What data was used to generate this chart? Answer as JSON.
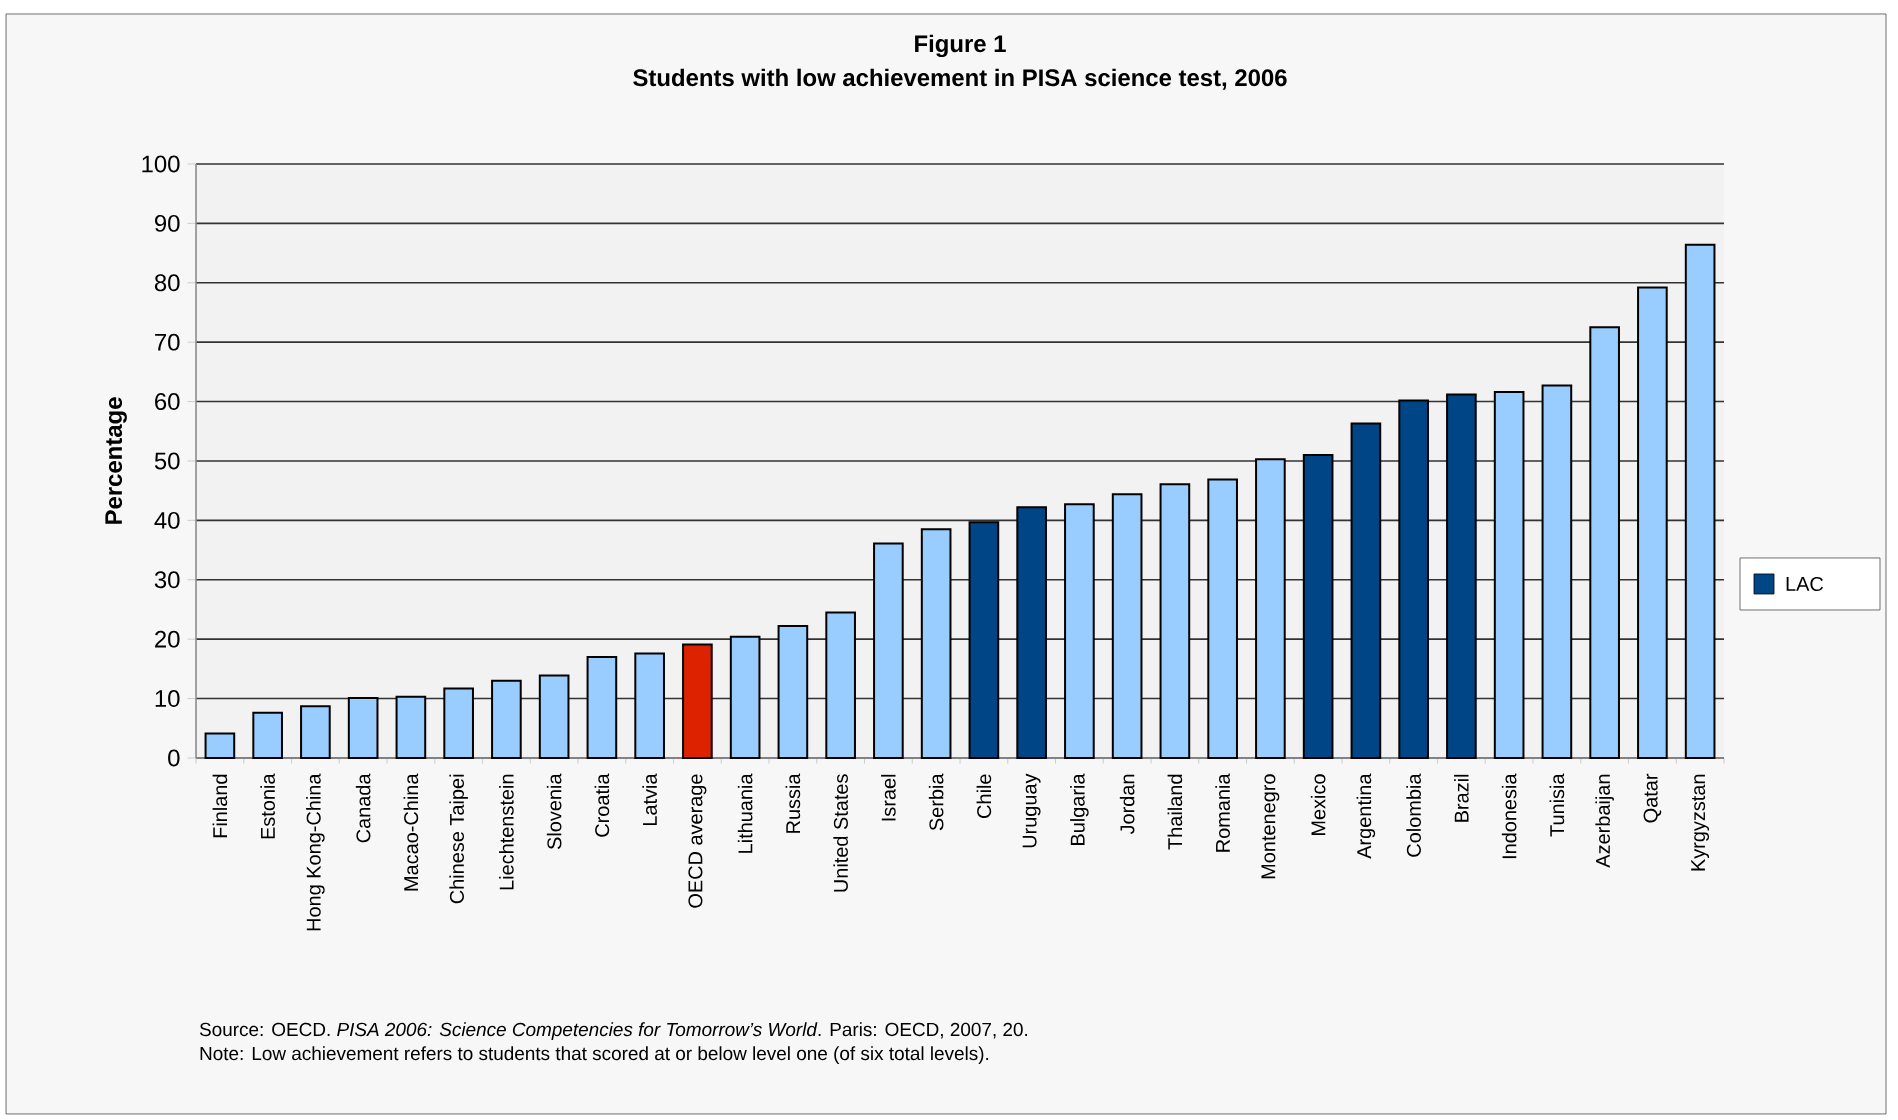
{
  "chart_data": {
    "type": "bar",
    "title": "Figure 1",
    "subtitle": "Students with low achievement in PISA science test, 2006",
    "ylabel": "Percentage",
    "categories": [
      "Finland",
      "Estonia",
      "Hong Kong-China",
      "Canada",
      "Macao-China",
      "Chinese Taipei",
      "Liechtenstein",
      "Slovenia",
      "Croatia",
      "Latvia",
      "OECD average",
      "Lithuania",
      "Russia",
      "United States",
      "Israel",
      "Serbia",
      "Chile",
      "Uruguay",
      "Bulgaria",
      "Jordan",
      "Thailand",
      "Romania",
      "Montenegro",
      "Mexico",
      "Argentina",
      "Colombia",
      "Brazil",
      "Indonesia",
      "Tunisia",
      "Azerbaijan",
      "Qatar",
      "Kyrgyzstan"
    ],
    "stacked": true,
    "series": [
      {
        "colors": [
          "#99ccff",
          "#99ccff",
          "#99ccff",
          "#99ccff",
          "#99ccff",
          "#99ccff",
          "#99ccff",
          "#99ccff",
          "#99ccff",
          "#99ccff",
          "#dd2200",
          "#99ccff",
          "#99ccff",
          "#99ccff",
          "#99ccff",
          "#99ccff",
          "#99ccff",
          "#99ccff",
          "#99ccff",
          "#99ccff",
          "#99ccff",
          "#99ccff",
          "#99ccff",
          "#99ccff",
          "#99ccff",
          "#99ccff",
          "#99ccff",
          "#99ccff",
          "#99ccff",
          "#99ccff",
          "#99ccff",
          "#99ccff"
        ],
        "values": [
          4.1,
          7.6,
          8.7,
          10.1,
          10.3,
          11.7,
          13.0,
          13.9,
          17.0,
          17.6,
          19.1,
          20.4,
          22.2,
          24.5,
          36.1,
          38.5,
          null,
          null,
          42.7,
          44.4,
          46.1,
          46.9,
          50.3,
          null,
          null,
          null,
          null,
          61.6,
          62.7,
          72.5,
          79.2,
          86.4
        ]
      },
      {
        "name": "LAC",
        "color": "#004586",
        "values": [
          null,
          null,
          null,
          null,
          null,
          null,
          null,
          null,
          null,
          null,
          null,
          null,
          null,
          null,
          null,
          null,
          39.7,
          42.2,
          null,
          null,
          null,
          null,
          null,
          51.0,
          56.3,
          60.2,
          61.2,
          null,
          null,
          null,
          null,
          null
        ]
      }
    ],
    "ylim": [
      0,
      100
    ],
    "yticks": [
      0,
      10,
      20,
      30,
      40,
      50,
      60,
      70,
      80,
      90,
      100
    ],
    "grid": "y",
    "legend": "right",
    "annotations": [
      "Source: OECD. *PISA 2006: Science Competencies for Tomorrow’s World*. Paris: OECD, 2007, 20.",
      "Note: Low achievement refers to students that scored at or below level one (of six total levels)."
    ]
  }
}
